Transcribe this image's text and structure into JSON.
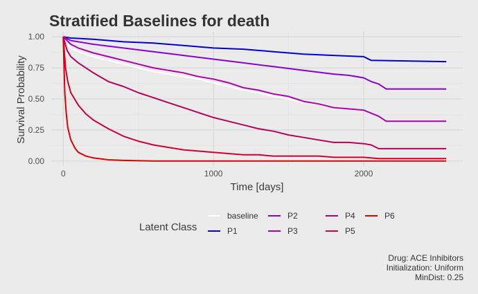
{
  "chart_data": {
    "type": "line",
    "title": "Stratified Baselines for death",
    "xlabel": "Time [days]",
    "ylabel": "Survival Probability",
    "xlim": [
      -80,
      2660
    ],
    "ylim": [
      -0.04,
      1.04
    ],
    "x_ticks": [
      0,
      1000,
      2000
    ],
    "x_tick_labels": [
      "0",
      "1000",
      "2000"
    ],
    "y_ticks": [
      0.0,
      0.25,
      0.5,
      0.75,
      1.0
    ],
    "y_tick_labels": [
      "0.00",
      "0.25",
      "0.50",
      "0.75",
      "1.00"
    ],
    "grid": true,
    "legend": {
      "title": "Latent Class",
      "placement": "bottom",
      "entries": [
        "baseline",
        "P1",
        "P2",
        "P3",
        "P4",
        "P5",
        "P6"
      ]
    },
    "series": [
      {
        "name": "baseline",
        "color": "#ffffff",
        "x": [
          0,
          50,
          100,
          200,
          300,
          400,
          500,
          600,
          700,
          800,
          900,
          1000,
          1100,
          1200,
          1300,
          1400,
          1500,
          1600,
          1700,
          1800,
          1900,
          2000,
          2100,
          2150,
          2550
        ],
        "y": [
          1.0,
          0.91,
          0.88,
          0.84,
          0.81,
          0.78,
          0.75,
          0.72,
          0.7,
          0.68,
          0.66,
          0.63,
          0.6,
          0.57,
          0.55,
          0.52,
          0.5,
          0.47,
          0.46,
          0.42,
          0.42,
          0.41,
          0.36,
          0.32,
          0.32
        ]
      },
      {
        "name": "P1",
        "color": "#0000cc",
        "x": [
          0,
          50,
          200,
          400,
          600,
          800,
          1000,
          1200,
          1400,
          1600,
          1800,
          2000,
          2050,
          2550
        ],
        "y": [
          1.0,
          0.99,
          0.98,
          0.96,
          0.95,
          0.93,
          0.91,
          0.9,
          0.88,
          0.86,
          0.85,
          0.84,
          0.81,
          0.8
        ]
      },
      {
        "name": "P2",
        "color": "#8800cc",
        "x": [
          0,
          50,
          200,
          400,
          600,
          800,
          1000,
          1200,
          1400,
          1600,
          1800,
          1900,
          2000,
          2050,
          2100,
          2150,
          2550
        ],
        "y": [
          1.0,
          0.97,
          0.94,
          0.91,
          0.88,
          0.85,
          0.82,
          0.79,
          0.76,
          0.73,
          0.7,
          0.69,
          0.67,
          0.64,
          0.62,
          0.58,
          0.58
        ]
      },
      {
        "name": "P3",
        "color": "#aa00aa",
        "x": [
          0,
          50,
          100,
          200,
          300,
          400,
          500,
          600,
          700,
          800,
          900,
          1000,
          1100,
          1200,
          1300,
          1400,
          1500,
          1600,
          1700,
          1800,
          1900,
          2000,
          2100,
          2150,
          2550
        ],
        "y": [
          1.0,
          0.94,
          0.91,
          0.87,
          0.84,
          0.81,
          0.78,
          0.75,
          0.73,
          0.71,
          0.68,
          0.66,
          0.63,
          0.59,
          0.57,
          0.54,
          0.52,
          0.48,
          0.46,
          0.43,
          0.42,
          0.41,
          0.36,
          0.32,
          0.32
        ]
      },
      {
        "name": "P4",
        "color": "#b5005a",
        "x": [
          0,
          25,
          50,
          100,
          200,
          300,
          400,
          500,
          600,
          700,
          800,
          900,
          1000,
          1100,
          1200,
          1300,
          1400,
          1500,
          1600,
          1700,
          1800,
          1900,
          2000,
          2050,
          2100,
          2550
        ],
        "y": [
          1.0,
          0.89,
          0.84,
          0.79,
          0.71,
          0.64,
          0.6,
          0.55,
          0.51,
          0.47,
          0.43,
          0.39,
          0.35,
          0.32,
          0.29,
          0.26,
          0.24,
          0.21,
          0.19,
          0.17,
          0.15,
          0.15,
          0.14,
          0.13,
          0.1,
          0.1
        ]
      },
      {
        "name": "P5",
        "color": "#cc0033",
        "x": [
          0,
          15,
          30,
          50,
          100,
          150,
          200,
          300,
          400,
          500,
          600,
          700,
          800,
          900,
          1000,
          1100,
          1200,
          1300,
          1400,
          1500,
          1600,
          1700,
          1800,
          1900,
          2000,
          2100,
          2550
        ],
        "y": [
          1.0,
          0.75,
          0.64,
          0.55,
          0.45,
          0.38,
          0.33,
          0.26,
          0.2,
          0.16,
          0.13,
          0.11,
          0.09,
          0.08,
          0.07,
          0.06,
          0.05,
          0.05,
          0.04,
          0.04,
          0.04,
          0.04,
          0.03,
          0.03,
          0.03,
          0.02,
          0.02
        ]
      },
      {
        "name": "P6",
        "color": "#dd0000",
        "x": [
          0,
          10,
          20,
          30,
          50,
          80,
          100,
          150,
          200,
          300,
          400,
          600,
          800,
          2550
        ],
        "y": [
          1.0,
          0.55,
          0.38,
          0.27,
          0.17,
          0.1,
          0.07,
          0.04,
          0.025,
          0.01,
          0.005,
          0.0,
          0.0,
          0.0
        ]
      }
    ],
    "caption": [
      "Drug: ACE Inhibitors",
      "Initialization: Uniform",
      "MinDist: 0.25"
    ]
  }
}
